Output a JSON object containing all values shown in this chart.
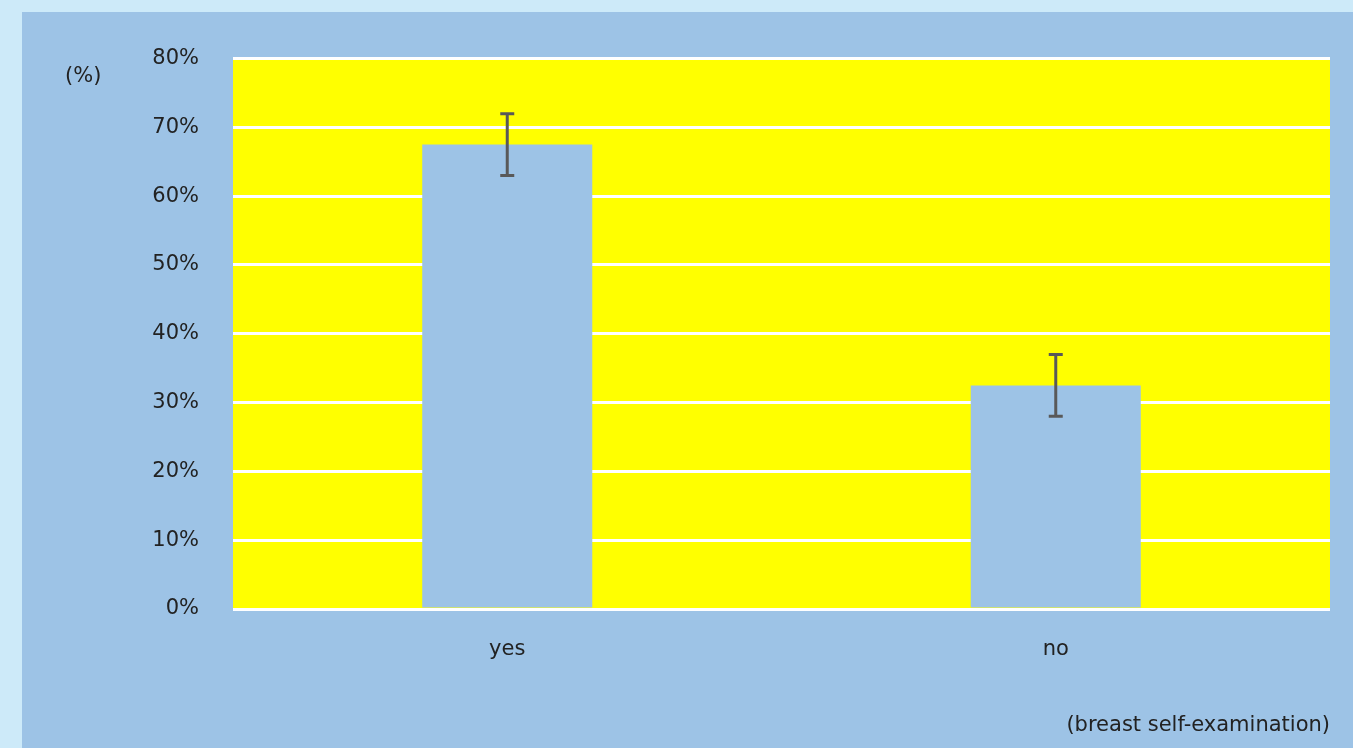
{
  "chart_data": {
    "type": "bar",
    "ylabel": "(%)",
    "xlabel": "(breast self-examination)",
    "categories": [
      "yes",
      "no"
    ],
    "values": [
      67.5,
      32.5
    ],
    "errors": [
      [
        63,
        72
      ],
      [
        28,
        37
      ]
    ],
    "color": "#9dc3e6",
    "ylim": [
      0,
      80
    ],
    "yticks": [
      {
        "value": 0,
        "label": "0%"
      },
      {
        "value": 10,
        "label": "10%"
      },
      {
        "value": 20,
        "label": "20%"
      },
      {
        "value": 30,
        "label": "30%"
      },
      {
        "value": 40,
        "label": "40%"
      },
      {
        "value": 50,
        "label": "50%"
      },
      {
        "value": 60,
        "label": "60%"
      },
      {
        "value": 70,
        "label": "70%"
      },
      {
        "value": 80,
        "label": "80%"
      }
    ],
    "grid": "y",
    "legend": false
  }
}
